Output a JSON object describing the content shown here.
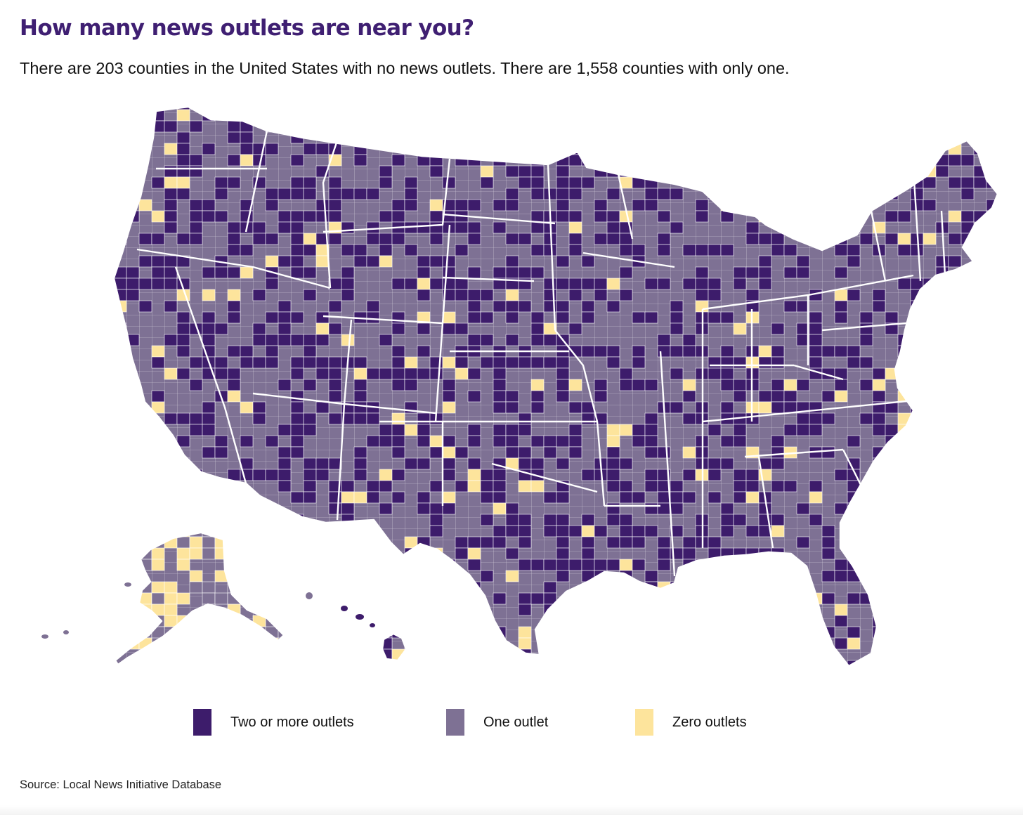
{
  "title": "How many news outlets are near you?",
  "subtitle": "There are 203 counties in the United States with no news outlets. There are 1,558 counties with only one.",
  "legend": [
    {
      "label": "Two or more outlets",
      "color": "#3d1c6b"
    },
    {
      "label": "One outlet",
      "color": "#7e7194"
    },
    {
      "label": "Zero outlets",
      "color": "#fde49c"
    }
  ],
  "source": "Source: Local News Initiative Database",
  "colors": {
    "two_or_more": "#3d1c6b",
    "one": "#7e7194",
    "zero": "#fde49c",
    "title": "#3f1f72",
    "borders": "#ffffff"
  },
  "map": {
    "type": "choropleth",
    "regions": [
      "contiguous-united-states",
      "alaska",
      "hawaii"
    ],
    "boundaries": [
      "county",
      "state"
    ]
  }
}
